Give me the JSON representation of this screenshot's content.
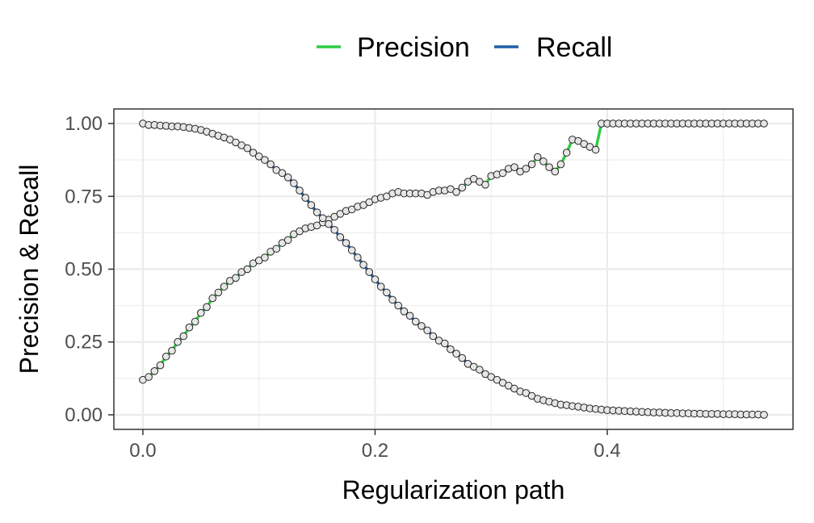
{
  "chart_data": {
    "type": "line",
    "title": "",
    "xlabel": "Regularization path",
    "ylabel": "Precision & Recall",
    "xlim": [
      -0.025,
      0.56
    ],
    "ylim": [
      -0.05,
      1.05
    ],
    "xticks": [
      {
        "value": 0.0,
        "label": "0.0"
      },
      {
        "value": 0.2,
        "label": "0.2"
      },
      {
        "value": 0.4,
        "label": "0.4"
      }
    ],
    "yticks": [
      {
        "value": 0.0,
        "label": "0.00"
      },
      {
        "value": 0.25,
        "label": "0.25"
      },
      {
        "value": 0.5,
        "label": "0.50"
      },
      {
        "value": 0.75,
        "label": "0.75"
      },
      {
        "value": 1.0,
        "label": "1.00"
      }
    ],
    "grid": true,
    "legend_position": "top",
    "x": [
      0.0,
      0.005,
      0.01,
      0.015,
      0.02,
      0.025,
      0.03,
      0.035,
      0.04,
      0.045,
      0.05,
      0.055,
      0.06,
      0.065,
      0.07,
      0.075,
      0.08,
      0.085,
      0.09,
      0.095,
      0.1,
      0.105,
      0.11,
      0.115,
      0.12,
      0.125,
      0.13,
      0.135,
      0.14,
      0.145,
      0.15,
      0.155,
      0.16,
      0.165,
      0.17,
      0.175,
      0.18,
      0.185,
      0.19,
      0.195,
      0.2,
      0.205,
      0.21,
      0.215,
      0.22,
      0.225,
      0.23,
      0.235,
      0.24,
      0.245,
      0.25,
      0.255,
      0.26,
      0.265,
      0.27,
      0.275,
      0.28,
      0.285,
      0.29,
      0.295,
      0.3,
      0.305,
      0.31,
      0.315,
      0.32,
      0.325,
      0.33,
      0.335,
      0.34,
      0.345,
      0.35,
      0.355,
      0.36,
      0.365,
      0.37,
      0.375,
      0.38,
      0.385,
      0.39,
      0.395,
      0.4,
      0.405,
      0.41,
      0.415,
      0.42,
      0.425,
      0.43,
      0.435,
      0.44,
      0.445,
      0.45,
      0.455,
      0.46,
      0.465,
      0.47,
      0.475,
      0.48,
      0.485,
      0.49,
      0.495,
      0.5,
      0.505,
      0.51,
      0.515,
      0.52,
      0.525,
      0.53,
      0.535
    ],
    "series": [
      {
        "name": "Precision",
        "color": "#2ecc40",
        "values": [
          0.12,
          0.13,
          0.15,
          0.17,
          0.2,
          0.22,
          0.25,
          0.27,
          0.3,
          0.32,
          0.35,
          0.37,
          0.4,
          0.42,
          0.44,
          0.46,
          0.47,
          0.49,
          0.5,
          0.52,
          0.53,
          0.54,
          0.56,
          0.57,
          0.59,
          0.6,
          0.62,
          0.63,
          0.64,
          0.645,
          0.65,
          0.66,
          0.67,
          0.68,
          0.69,
          0.7,
          0.705,
          0.715,
          0.72,
          0.73,
          0.74,
          0.745,
          0.75,
          0.76,
          0.765,
          0.76,
          0.76,
          0.76,
          0.76,
          0.755,
          0.765,
          0.77,
          0.77,
          0.775,
          0.765,
          0.78,
          0.8,
          0.81,
          0.8,
          0.79,
          0.82,
          0.825,
          0.83,
          0.845,
          0.85,
          0.835,
          0.845,
          0.86,
          0.885,
          0.87,
          0.85,
          0.835,
          0.86,
          0.9,
          0.945,
          0.94,
          0.93,
          0.92,
          0.91,
          1.0,
          1.0,
          1.0,
          1.0,
          1.0,
          1.0,
          1.0,
          1.0,
          1.0,
          1.0,
          1.0,
          1.0,
          1.0,
          1.0,
          1.0,
          1.0,
          1.0,
          1.0,
          1.0,
          1.0,
          1.0,
          1.0,
          1.0,
          1.0,
          1.0,
          1.0,
          1.0,
          1.0,
          1.0
        ]
      },
      {
        "name": "Recall",
        "color": "#1f5fa8",
        "values": [
          1.0,
          0.995,
          0.995,
          0.993,
          0.992,
          0.99,
          0.99,
          0.988,
          0.985,
          0.982,
          0.978,
          0.972,
          0.965,
          0.958,
          0.952,
          0.945,
          0.935,
          0.925,
          0.915,
          0.9,
          0.887,
          0.875,
          0.86,
          0.84,
          0.83,
          0.815,
          0.795,
          0.77,
          0.745,
          0.72,
          0.695,
          0.675,
          0.655,
          0.635,
          0.61,
          0.59,
          0.565,
          0.54,
          0.515,
          0.49,
          0.465,
          0.44,
          0.42,
          0.395,
          0.375,
          0.355,
          0.34,
          0.32,
          0.305,
          0.29,
          0.27,
          0.255,
          0.245,
          0.225,
          0.21,
          0.195,
          0.175,
          0.165,
          0.155,
          0.14,
          0.13,
          0.12,
          0.11,
          0.1,
          0.09,
          0.08,
          0.075,
          0.065,
          0.055,
          0.05,
          0.045,
          0.04,
          0.035,
          0.033,
          0.03,
          0.028,
          0.025,
          0.022,
          0.02,
          0.018,
          0.016,
          0.015,
          0.014,
          0.013,
          0.012,
          0.011,
          0.01,
          0.009,
          0.008,
          0.008,
          0.007,
          0.006,
          0.006,
          0.005,
          0.005,
          0.004,
          0.004,
          0.003,
          0.003,
          0.003,
          0.002,
          0.002,
          0.002,
          0.001,
          0.001,
          0.001,
          0.001,
          0.0
        ]
      }
    ]
  }
}
